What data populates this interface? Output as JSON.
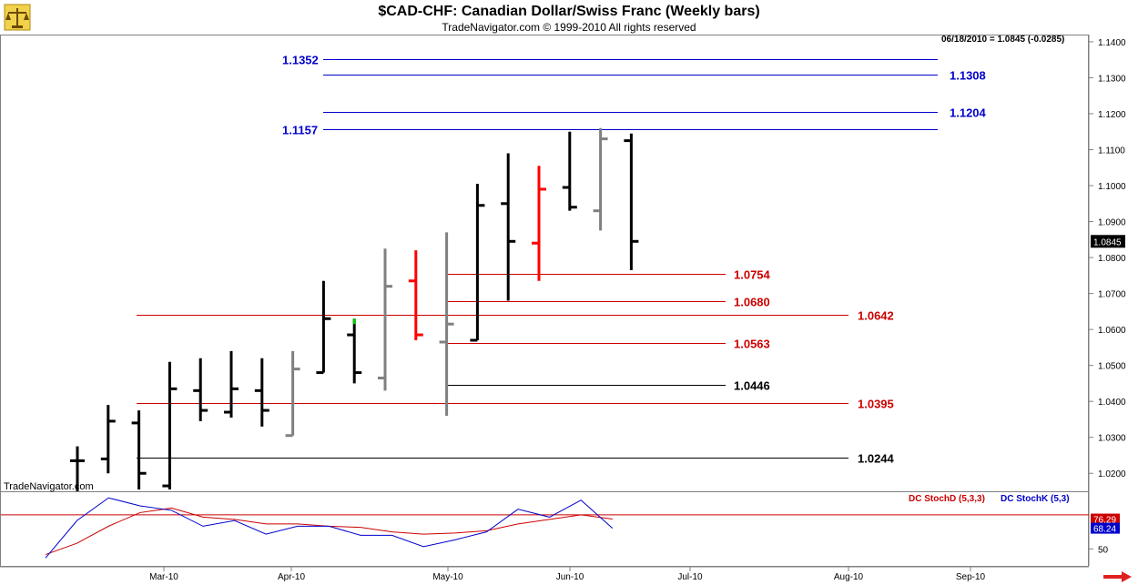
{
  "header": {
    "title": "$CAD-CHF:  Canadian Dollar/Swiss Franc  (Weekly bars)",
    "subtitle": "TradeNavigator.com © 1999-2010 All rights reserved",
    "last_bar": "06/18/2010 = 1.0845 (-0.0285)",
    "watermark": "TradeNavigator.com"
  },
  "colors": {
    "up": "#000000",
    "down": "#ff0000",
    "inside": "#808080",
    "fib_blue": "#0000cc",
    "fib_red": "#cc0000",
    "fib_black": "#000000",
    "stochD": "#cc0000",
    "stochK": "#0000cc",
    "green": "#00cc00",
    "background": "#ffffff"
  },
  "chart_data": [
    {
      "type": "ohlc",
      "title": "$CAD-CHF:  Canadian Dollar/Swiss Franc  (Weekly bars)",
      "ylim": [
        1.015,
        1.142
      ],
      "y_ticks": [
        "1.1400",
        "1.1300",
        "1.1200",
        "1.1100",
        "1.1000",
        "1.0900",
        "1.0800",
        "1.0700",
        "1.0600",
        "1.0500",
        "1.0400",
        "1.0300",
        "1.0200"
      ],
      "x_ticks": [
        "Mar-10",
        "Apr-10",
        "May-10",
        "Jun-10",
        "Jul-10",
        "Aug-10",
        "Sep-10"
      ],
      "last_price_label": "1.0845",
      "bars": [
        {
          "i": 0,
          "o": 1.0235,
          "h": 1.0275,
          "l": 1.015,
          "c": 1.0235,
          "color": "up"
        },
        {
          "i": 1,
          "o": 1.024,
          "h": 1.039,
          "l": 1.02,
          "c": 1.0345,
          "color": "up"
        },
        {
          "i": 2,
          "o": 1.034,
          "h": 1.0375,
          "l": 1.0155,
          "c": 1.02,
          "color": "up"
        },
        {
          "i": 3,
          "o": 1.0165,
          "h": 1.051,
          "l": 1.0155,
          "c": 1.0435,
          "color": "up"
        },
        {
          "i": 4,
          "o": 1.043,
          "h": 1.052,
          "l": 1.0345,
          "c": 1.0375,
          "color": "up"
        },
        {
          "i": 5,
          "o": 1.037,
          "h": 1.054,
          "l": 1.0355,
          "c": 1.0435,
          "color": "up"
        },
        {
          "i": 6,
          "o": 1.043,
          "h": 1.052,
          "l": 1.033,
          "c": 1.0375,
          "color": "up"
        },
        {
          "i": 7,
          "o": 1.0305,
          "h": 1.054,
          "l": 1.0305,
          "c": 1.049,
          "color": "inside"
        },
        {
          "i": 8,
          "o": 1.048,
          "h": 1.0735,
          "l": 1.048,
          "c": 1.063,
          "color": "up"
        },
        {
          "i": 9,
          "o": 1.0585,
          "h": 1.063,
          "l": 1.045,
          "c": 1.048,
          "color": "up"
        },
        {
          "i": 10,
          "o": 1.0465,
          "h": 1.0825,
          "l": 1.043,
          "c": 1.072,
          "color": "inside"
        },
        {
          "i": 11,
          "o": 1.0735,
          "h": 1.082,
          "l": 1.057,
          "c": 1.0585,
          "color": "down"
        },
        {
          "i": 12,
          "o": 1.0565,
          "h": 1.087,
          "l": 1.036,
          "c": 1.0615,
          "color": "inside"
        },
        {
          "i": 13,
          "o": 1.057,
          "h": 1.1005,
          "l": 1.057,
          "c": 1.0945,
          "color": "up"
        },
        {
          "i": 14,
          "o": 1.095,
          "h": 1.109,
          "l": 1.068,
          "c": 1.0845,
          "color": "up"
        },
        {
          "i": 15,
          "o": 1.084,
          "h": 1.1055,
          "l": 1.0735,
          "c": 1.099,
          "color": "down"
        },
        {
          "i": 16,
          "o": 1.0995,
          "h": 1.115,
          "l": 1.093,
          "c": 1.094,
          "color": "up"
        },
        {
          "i": 17,
          "o": 1.093,
          "h": 1.116,
          "l": 1.0875,
          "c": 1.113,
          "color": "inside"
        },
        {
          "i": 18,
          "o": 1.1125,
          "h": 1.1145,
          "l": 1.0765,
          "c": 1.0845,
          "color": "up"
        }
      ],
      "levels": [
        {
          "label": "1.1352",
          "value": 1.1352,
          "color": "fib_blue",
          "side": "left"
        },
        {
          "label": "1.1308",
          "value": 1.1308,
          "color": "fib_blue",
          "side": "right"
        },
        {
          "label": "1.1204",
          "value": 1.1204,
          "color": "fib_blue",
          "side": "right"
        },
        {
          "label": "1.1157",
          "value": 1.1157,
          "color": "fib_blue",
          "side": "left"
        },
        {
          "label": "1.0754",
          "value": 1.0754,
          "color": "fib_red",
          "side": "right"
        },
        {
          "label": "1.0680",
          "value": 1.068,
          "color": "fib_red",
          "side": "right"
        },
        {
          "label": "1.0642",
          "value": 1.0642,
          "color": "fib_red",
          "side": "right"
        },
        {
          "label": "1.0563",
          "value": 1.0563,
          "color": "fib_red",
          "side": "right"
        },
        {
          "label": "1.0446",
          "value": 1.0446,
          "color": "fib_black",
          "side": "right"
        },
        {
          "label": "1.0395",
          "value": 1.0395,
          "color": "fib_red",
          "side": "right"
        },
        {
          "label": "1.0244",
          "value": 1.0244,
          "color": "fib_black",
          "side": "right"
        }
      ]
    },
    {
      "type": "line",
      "legend": [
        {
          "name": "DC StochD (5,3,3)",
          "color": "stochD"
        },
        {
          "name": "DC StochK (5,3)",
          "color": "stochK"
        }
      ],
      "ylim": [
        35,
        100
      ],
      "y_ticks": [
        "50"
      ],
      "value_labels": [
        "76.29",
        "68.24"
      ],
      "series": [
        {
          "name": "DC StochD (5,3,3)",
          "values": [
            45,
            55,
            70,
            82,
            86,
            78,
            76,
            72,
            72,
            70,
            69,
            65,
            63,
            64,
            66,
            72,
            76,
            80,
            76.29
          ]
        },
        {
          "name": "DC StochK (5,3)",
          "values": [
            42,
            75,
            95,
            88,
            84,
            70,
            75,
            63,
            70,
            70,
            62,
            62,
            52,
            58,
            65,
            85,
            78,
            93,
            68.24
          ]
        }
      ]
    }
  ]
}
